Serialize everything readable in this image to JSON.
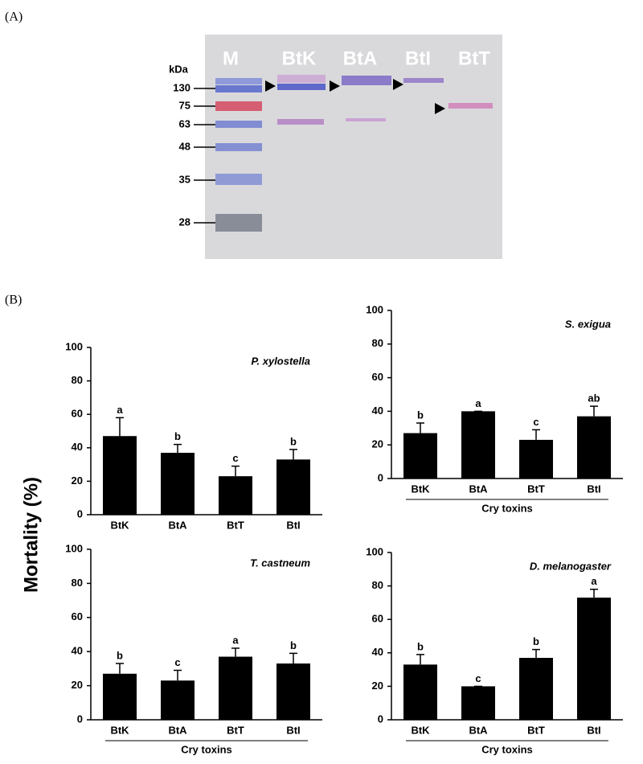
{
  "panel_labels": [
    "(A)",
    "(B)"
  ],
  "gel": {
    "unit": "kDa",
    "lanes": [
      "M",
      "BtK",
      "BtA",
      "BtI",
      "BtT"
    ],
    "markers": [
      "130",
      "75",
      "63",
      "48",
      "35",
      "28"
    ]
  },
  "y_label": "Mortality (%)",
  "chart_data": [
    {
      "type": "bar",
      "title": "P. xylostella",
      "categories": [
        "BtK",
        "BtA",
        "BtT",
        "BtI"
      ],
      "values": [
        47,
        37,
        23,
        33
      ],
      "errors": [
        11,
        5,
        6,
        6
      ],
      "significance_letters": [
        "a",
        "b",
        "c",
        "b"
      ],
      "color": "#000000",
      "ylim": [
        0,
        100
      ],
      "yticks": [
        0,
        20,
        40,
        60,
        80,
        100
      ]
    },
    {
      "type": "bar",
      "title": "S. exigua",
      "xlabel": "Cry toxins",
      "categories": [
        "BtK",
        "BtA",
        "BtT",
        "BtI"
      ],
      "values": [
        27,
        40,
        23,
        37
      ],
      "errors": [
        6,
        0,
        6,
        6
      ],
      "significance_letters": [
        "b",
        "a",
        "c",
        "ab"
      ],
      "color": "#000000",
      "ylim": [
        0,
        100
      ],
      "yticks": [
        0,
        20,
        40,
        60,
        80,
        100
      ]
    },
    {
      "type": "bar",
      "title": "T. castneum",
      "xlabel": "Cry toxins",
      "categories": [
        "BtK",
        "BtA",
        "BtT",
        "BtI"
      ],
      "values": [
        27,
        23,
        37,
        33
      ],
      "errors": [
        6,
        6,
        5,
        6
      ],
      "significance_letters": [
        "b",
        "c",
        "a",
        "b"
      ],
      "color": "#000000",
      "ylim": [
        0,
        100
      ],
      "yticks": [
        0,
        20,
        40,
        60,
        80,
        100
      ]
    },
    {
      "type": "bar",
      "title": "D. melanogaster",
      "xlabel": "Cry toxins",
      "categories": [
        "BtK",
        "BtA",
        "BtT",
        "BtI"
      ],
      "values": [
        33,
        20,
        37,
        73
      ],
      "errors": [
        6,
        0,
        5,
        5
      ],
      "significance_letters": [
        "b",
        "c",
        "b",
        "a"
      ],
      "color": "#000000",
      "ylim": [
        0,
        100
      ],
      "yticks": [
        0,
        20,
        40,
        60,
        80,
        100
      ]
    }
  ]
}
